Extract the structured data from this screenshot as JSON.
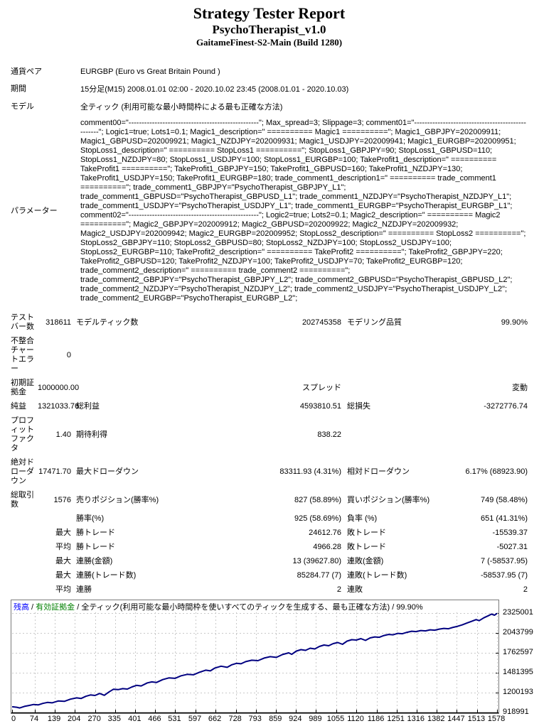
{
  "report": {
    "title": "Strategy Tester Report",
    "ea_name": "PsychoTherapist_v1.0",
    "server": "GaitameFinest-S2-Main (Build 1280)"
  },
  "info": {
    "symbol_label": "通貨ペア",
    "symbol_value": "EURGBP (Euro vs Great Britain Pound )",
    "period_label": "期間",
    "period_value": "15分足(M15) 2008.01.01 02:00 - 2020.10.02 23:45 (2008.01.01 - 2020.10.03)",
    "model_label": "モデル",
    "model_value": "全ティック (利用可能な最小時間枠による最も正確な方法)",
    "parameters_label": "パラメーター",
    "parameters_value": "comment00=\"--------------------------------------------------\"; Max_spread=3; Slippage=3; comment01=\"--------------------------------------------------\"; Logic1=true; Lots1=0.1; Magic1_description=\" ========== Magic1 ==========\"; Magic1_GBPJPY=202009911; Magic1_GBPUSD=202009921; Magic1_NZDJPY=202009931; Magic1_USDJPY=202009941; Magic1_EURGBP=202009951; StopLoss1_description=\" ========== StopLoss1 ==========\"; StopLoss1_GBPJPY=90; StopLoss1_GBPUSD=110; StopLoss1_NZDJPY=80; StopLoss1_USDJPY=100; StopLoss1_EURGBP=100; TakeProfit1_description=\" ========== TakeProfit1 ==========\"; TakeProfit1_GBPJPY=150; TakeProfit1_GBPUSD=160; TakeProfit1_NZDJPY=130; TakeProfit1_USDJPY=150; TakeProfit1_EURGBP=180; trade_comment1_description1=\" ========== trade_comment1 ==========\"; trade_comment1_GBPJPY=\"PsychoTherapist_GBPJPY_L1\"; trade_comment1_GBPUSD=\"PsychoTherapist_GBPUSD_L1\"; trade_comment1_NZDJPY=\"PsychoTherapist_NZDJPY_L1\"; trade_comment1_USDJPY=\"PsychoTherapist_USDJPY_L1\"; trade_comment1_EURGBP=\"PsychoTherapist_EURGBP_L1\"; comment02=\"--------------------------------------------------\"; Logic2=true; Lots2=0.1; Magic2_description=\" ========== Magic2 ==========\"; Magic2_GBPJPY=202009912; Magic2_GBPUSD=202009922; Magic2_NZDJPY=202009932; Magic2_USDJPY=202009942; Magic2_EURGBP=202009952; StopLoss2_description=\" ========== StopLoss2 ==========\"; StopLoss2_GBPJPY=110; StopLoss2_GBPUSD=80; StopLoss2_NZDJPY=100; StopLoss2_USDJPY=100; StopLoss2_EURGBP=110; TakeProfit2_description=\" ========== TakeProfit2 ==========\"; TakeProfit2_GBPJPY=220; TakeProfit2_GBPUSD=120; TakeProfit2_NZDJPY=100; TakeProfit2_USDJPY=70; TakeProfit2_EURGBP=120; trade_comment2_description=\" ========== trade_comment2 ==========\"; trade_comment2_GBPJPY=\"PsychoTherapist_GBPJPY_L2\"; trade_comment2_GBPUSD=\"PsychoTherapist_GBPUSD_L2\"; trade_comment2_NZDJPY=\"PsychoTherapist_NZDJPY_L2\"; trade_comment2_USDJPY=\"PsychoTherapist_USDJPY_L2\"; trade_comment2_EURGBP=\"PsychoTherapist_EURGBP_L2\";"
  },
  "stats": {
    "rows": [
      {
        "l1": "テストバー数",
        "v1": "318611",
        "l2": "モデルティック数",
        "v2": "202745358",
        "l3": "モデリング品質",
        "v3": "99.90%"
      },
      {
        "l1": "不整合チャートエラー",
        "v1": "0",
        "l2": "",
        "v2": "",
        "l3": "",
        "v3": ""
      },
      {
        "l1": "初期証拠金",
        "v1": "1000000.00",
        "l2": "",
        "v2": "スプレッド",
        "l3": "",
        "v3": "変動"
      },
      {
        "l1": "純益",
        "v1": "1321033.76",
        "l2": "総利益",
        "v2": "4593810.51",
        "l3": "総損失",
        "v3": "-3272776.74"
      },
      {
        "l1": "プロフィットファクタ",
        "v1": "1.40",
        "l2": "期待利得",
        "v2": "838.22",
        "l3": "",
        "v3": ""
      },
      {
        "l1": "絶対ドローダウン",
        "v1": "17471.70",
        "l2": "最大ドローダウン",
        "v2": "83311.93 (4.31%)",
        "l3": "相対ドローダウン",
        "v3": "6.17% (68923.90)"
      },
      {
        "l1": "総取引数",
        "v1": "1576",
        "l2": "売りポジション(勝率%)",
        "v2": "827 (58.89%)",
        "l3": "買いポジション(勝率%)",
        "v3": "749 (58.48%)"
      },
      {
        "l1": "",
        "v1": "",
        "l2": "勝率(%)",
        "v2": "925 (58.69%)",
        "l3": "負率 (%)",
        "v3": "651 (41.31%)"
      },
      {
        "l1": "",
        "v1": "最大",
        "l2": "勝トレード",
        "v2": "24612.76",
        "l3": "敗トレード",
        "v3": "-15539.37"
      },
      {
        "l1": "",
        "v1": "平均",
        "l2": "勝トレード",
        "v2": "4966.28",
        "l3": "敗トレード",
        "v3": "-5027.31"
      },
      {
        "l1": "",
        "v1": "最大",
        "l2": "連勝(金額)",
        "v2": "13 (39627.80)",
        "l3": "連敗(金額)",
        "v3": "7 (-58537.95)"
      },
      {
        "l1": "",
        "v1": "最大",
        "l2": "連勝(トレード数)",
        "v2": "85284.77 (7)",
        "l3": "連敗(トレード数)",
        "v3": "-58537.95 (7)"
      },
      {
        "l1": "",
        "v1": "平均",
        "l2": "連勝",
        "v2": "2",
        "l3": "連敗",
        "v3": "2"
      }
    ]
  },
  "chart_data": {
    "type": "line",
    "title_parts": {
      "balance_label": "残高",
      "sep": " / ",
      "equity_label": "有効証拠金",
      "model_text": "全ティック(利用可能な最小時間枠を使いすべてのティックを生成する、最も正確な方法)",
      "quality": "99.90%"
    },
    "colors": {
      "balance": "#0000ff",
      "equity": "#008000",
      "line": "#000080",
      "grid": "#c9c9c9",
      "axis": "#000000"
    },
    "legend_position": "top-left",
    "grid": true,
    "xlim": [
      0,
      1578
    ],
    "ylim": [
      918991,
      2345000
    ],
    "x_ticks": [
      0,
      74,
      139,
      204,
      270,
      335,
      401,
      466,
      531,
      597,
      662,
      728,
      793,
      859,
      924,
      989,
      1055,
      1120,
      1186,
      1251,
      1316,
      1382,
      1447,
      1513,
      1578
    ],
    "y_ticks": [
      918991,
      1200193,
      1481395,
      1762597,
      2043799,
      2325001
    ],
    "series": [
      {
        "name": "残高",
        "points": [
          [
            0,
            1000000
          ],
          [
            15,
            993000
          ],
          [
            25,
            983000
          ],
          [
            40,
            1005000
          ],
          [
            55,
            1018000
          ],
          [
            70,
            1032000
          ],
          [
            85,
            1026000
          ],
          [
            100,
            1048000
          ],
          [
            115,
            1062000
          ],
          [
            130,
            1056000
          ],
          [
            150,
            1082000
          ],
          [
            170,
            1077000
          ],
          [
            190,
            1108000
          ],
          [
            210,
            1126000
          ],
          [
            225,
            1118000
          ],
          [
            240,
            1148000
          ],
          [
            255,
            1167000
          ],
          [
            270,
            1160000
          ],
          [
            285,
            1188000
          ],
          [
            300,
            1162000
          ],
          [
            315,
            1208000
          ],
          [
            330,
            1248000
          ],
          [
            345,
            1242000
          ],
          [
            360,
            1256000
          ],
          [
            375,
            1250000
          ],
          [
            390,
            1281000
          ],
          [
            405,
            1303000
          ],
          [
            420,
            1295000
          ],
          [
            440,
            1338000
          ],
          [
            455,
            1352000
          ],
          [
            470,
            1344000
          ],
          [
            490,
            1384000
          ],
          [
            510,
            1408000
          ],
          [
            530,
            1402000
          ],
          [
            550,
            1438000
          ],
          [
            570,
            1458000
          ],
          [
            590,
            1452000
          ],
          [
            610,
            1488000
          ],
          [
            630,
            1518000
          ],
          [
            645,
            1508000
          ],
          [
            660,
            1548000
          ],
          [
            680,
            1574000
          ],
          [
            700,
            1558000
          ],
          [
            715,
            1594000
          ],
          [
            730,
            1614000
          ],
          [
            745,
            1608000
          ],
          [
            760,
            1638000
          ],
          [
            780,
            1658000
          ],
          [
            800,
            1652000
          ],
          [
            820,
            1688000
          ],
          [
            840,
            1708000
          ],
          [
            860,
            1698000
          ],
          [
            880,
            1738000
          ],
          [
            900,
            1763000
          ],
          [
            910,
            1742000
          ],
          [
            925,
            1788000
          ],
          [
            940,
            1808000
          ],
          [
            955,
            1798000
          ],
          [
            970,
            1828000
          ],
          [
            985,
            1818000
          ],
          [
            1000,
            1853000
          ],
          [
            1015,
            1873000
          ],
          [
            1030,
            1863000
          ],
          [
            1045,
            1893000
          ],
          [
            1060,
            1908000
          ],
          [
            1075,
            1883000
          ],
          [
            1090,
            1928000
          ],
          [
            1105,
            1948000
          ],
          [
            1120,
            1943000
          ],
          [
            1135,
            1963000
          ],
          [
            1150,
            1938000
          ],
          [
            1165,
            1973000
          ],
          [
            1180,
            1988000
          ],
          [
            1195,
            1983000
          ],
          [
            1210,
            2008000
          ],
          [
            1225,
            2023000
          ],
          [
            1240,
            2018000
          ],
          [
            1255,
            2038000
          ],
          [
            1270,
            2033000
          ],
          [
            1285,
            2053000
          ],
          [
            1300,
            2068000
          ],
          [
            1315,
            2063000
          ],
          [
            1330,
            2078000
          ],
          [
            1345,
            2073000
          ],
          [
            1360,
            2088000
          ],
          [
            1375,
            2083000
          ],
          [
            1390,
            2098000
          ],
          [
            1405,
            2108000
          ],
          [
            1420,
            2103000
          ],
          [
            1435,
            2123000
          ],
          [
            1450,
            2138000
          ],
          [
            1465,
            2158000
          ],
          [
            1480,
            2183000
          ],
          [
            1495,
            2208000
          ],
          [
            1510,
            2233000
          ],
          [
            1520,
            2218000
          ],
          [
            1535,
            2258000
          ],
          [
            1550,
            2288000
          ],
          [
            1560,
            2310000
          ],
          [
            1570,
            2295000
          ],
          [
            1578,
            2321034
          ]
        ]
      }
    ]
  }
}
